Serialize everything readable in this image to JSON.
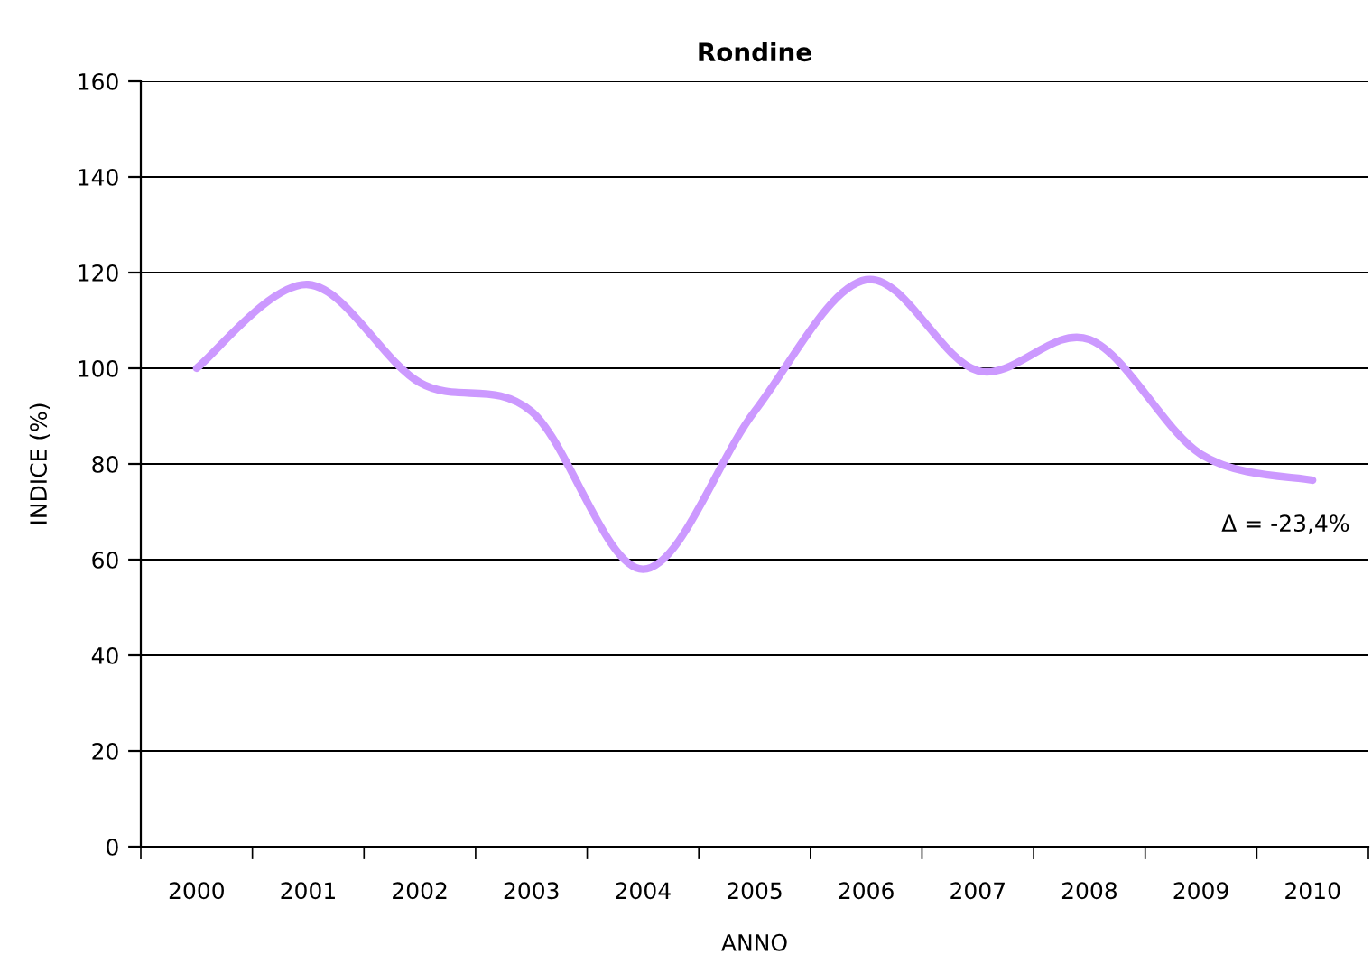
{
  "chart_data": {
    "type": "line",
    "title": "Rondine",
    "xlabel": "ANNO",
    "ylabel": "INDICE (%)",
    "categories": [
      "2000",
      "2001",
      "2002",
      "2003",
      "2004",
      "2005",
      "2006",
      "2007",
      "2008",
      "2009",
      "2010"
    ],
    "series": [
      {
        "color": "#cc99ff",
        "values": [
          100,
          117.5,
          97,
          91,
          58,
          91,
          118.5,
          99.5,
          106,
          82,
          76.6
        ]
      }
    ],
    "ylim": [
      0,
      160
    ],
    "yticks": [
      0,
      20,
      40,
      60,
      80,
      100,
      120,
      140,
      160
    ],
    "grid": "y",
    "legend": false,
    "marker": "none",
    "line_style": "solid",
    "annotations": [
      "Δ = -23,4%"
    ]
  }
}
